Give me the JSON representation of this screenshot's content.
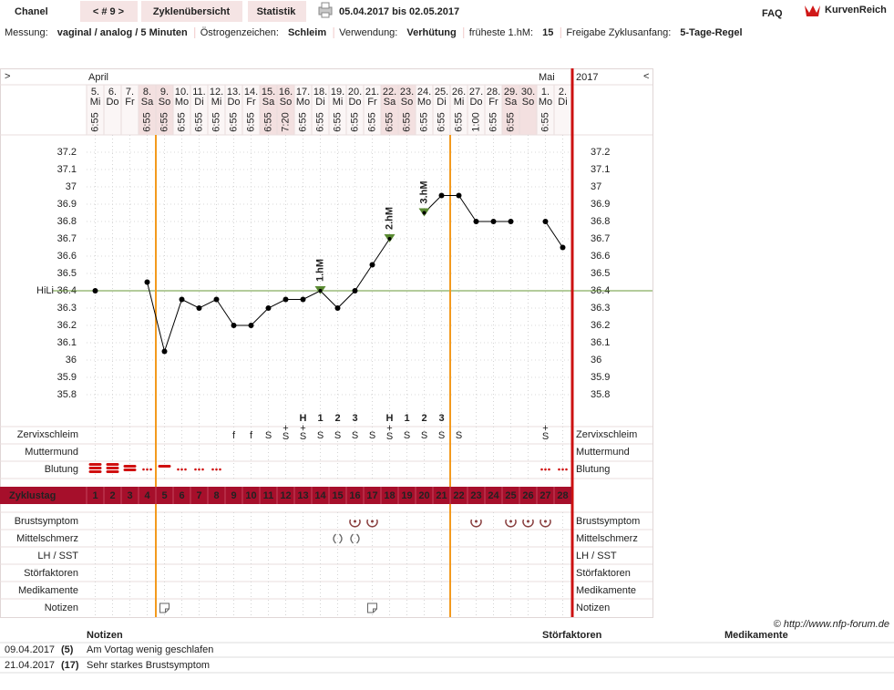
{
  "header": {
    "name": "Chanel",
    "cycle_nav": "< # 9 >",
    "tabs": [
      "Zyklenübersicht",
      "Statistik"
    ],
    "period": "05.04.2017 bis 02.05.2017",
    "faq": "FAQ",
    "logo": "KurvenReich"
  },
  "settings": [
    {
      "label": "Messung:",
      "value": "vaginal / analog / 5 Minuten"
    },
    {
      "label": "Östrogenzeichen:",
      "value": "Schleim"
    },
    {
      "label": "Verwendung:",
      "value": "Verhütung"
    },
    {
      "label": "früheste 1.hM:",
      "value": "15"
    },
    {
      "label": "Freigabe Zyklusanfang:",
      "value": "5-Tage-Regel"
    }
  ],
  "chart_data": {
    "type": "line",
    "nav_left": ">",
    "nav_right": "<",
    "year": "2017",
    "months": [
      "April",
      null,
      null,
      null,
      null,
      null,
      null,
      null,
      null,
      null,
      null,
      null,
      null,
      null,
      null,
      null,
      null,
      null,
      null,
      null,
      null,
      null,
      null,
      null,
      null,
      null,
      "Mai",
      null
    ],
    "dates": [
      "5.",
      "6.",
      "7.",
      "8.",
      "9.",
      "10.",
      "11.",
      "12.",
      "13.",
      "14.",
      "15.",
      "16.",
      "17.",
      "18.",
      "19.",
      "20.",
      "21.",
      "22.",
      "23.",
      "24.",
      "25.",
      "26.",
      "27.",
      "28.",
      "29.",
      "30.",
      "1.",
      "2."
    ],
    "weekdays": [
      "Mi",
      "Do",
      "Fr",
      "Sa",
      "So",
      "Mo",
      "Di",
      "Mi",
      "Do",
      "Fr",
      "Sa",
      "So",
      "Mo",
      "Di",
      "Mi",
      "Do",
      "Fr",
      "Sa",
      "So",
      "Mo",
      "Di",
      "Mi",
      "Do",
      "Fr",
      "Sa",
      "So",
      "Mo",
      "Di"
    ],
    "weekend": [
      false,
      false,
      false,
      true,
      true,
      false,
      false,
      false,
      false,
      false,
      true,
      true,
      false,
      false,
      false,
      false,
      false,
      true,
      true,
      false,
      false,
      false,
      false,
      false,
      true,
      true,
      false,
      false
    ],
    "times": [
      "6:55",
      null,
      null,
      "6:55",
      "6:55",
      "6:55",
      "6:55",
      "6:55",
      "6:55",
      "6:55",
      "6:55",
      "7:20",
      "6:55",
      "6:55",
      "6:55",
      "6:55",
      "6:55",
      "6:55",
      "6:55",
      "6:55",
      "6:55",
      "6:55",
      "1:00",
      "6:55",
      "6:55",
      null,
      "6:55",
      null
    ],
    "values": [
      36.4,
      null,
      null,
      36.45,
      36.05,
      36.35,
      36.3,
      36.35,
      36.2,
      36.2,
      36.3,
      36.35,
      36.35,
      36.4,
      36.3,
      36.4,
      36.55,
      36.7,
      null,
      36.85,
      36.95,
      36.95,
      36.8,
      36.8,
      36.8,
      null,
      36.8,
      36.65
    ],
    "color": "#000000",
    "hm_labels": [
      null,
      null,
      null,
      null,
      null,
      null,
      null,
      null,
      null,
      null,
      null,
      null,
      null,
      "1.hM",
      null,
      null,
      null,
      "2.hM",
      null,
      "3.hM",
      null,
      null,
      null,
      null,
      null,
      null,
      null,
      null
    ],
    "hm_color": "#5a8a32",
    "ylim": [
      35.7,
      37.3
    ],
    "yticks": [
      37.2,
      37.1,
      37,
      36.9,
      36.8,
      36.7,
      36.6,
      36.5,
      36.4,
      36.3,
      36.2,
      36.1,
      36,
      35.9,
      35.8
    ],
    "grid": true,
    "reference_line": {
      "label": "HiLi",
      "value": 36.4,
      "color": "#6a9a3a"
    },
    "phase_lines": [
      4,
      21
    ],
    "phase_color": "#f39a1e",
    "count_row": [
      null,
      null,
      null,
      null,
      null,
      null,
      null,
      null,
      null,
      null,
      null,
      null,
      "H",
      "1",
      "2",
      "3",
      null,
      "H",
      "1",
      "2",
      "3",
      null,
      null,
      null,
      null,
      null,
      null,
      null
    ],
    "rows_upper": [
      {
        "label": "Zervixschleim",
        "color": "#e8820c",
        "values": [
          null,
          null,
          null,
          null,
          null,
          null,
          null,
          null,
          "f",
          "f",
          "S",
          {
            "sign": "S",
            "sup": "+"
          },
          {
            "sign": "S",
            "sup": "+"
          },
          "S",
          "S",
          "S",
          "S",
          {
            "sign": "S",
            "sup": "+"
          },
          "S",
          "S",
          "S",
          "S",
          null,
          null,
          null,
          null,
          {
            "sign": "S",
            "sup": "+"
          },
          null
        ]
      },
      {
        "label": "Muttermund",
        "color": "#5566cc"
      },
      {
        "label": "Blutung",
        "color": "#222222",
        "mark_color": "#d01010",
        "levels": [
          4,
          4,
          3,
          1,
          2,
          1,
          1,
          1,
          null,
          null,
          null,
          null,
          null,
          null,
          null,
          null,
          null,
          null,
          null,
          null,
          null,
          null,
          null,
          null,
          null,
          null,
          1,
          1
        ]
      }
    ],
    "cycle_day": {
      "label": "Zyklustag",
      "days": [
        1,
        2,
        3,
        4,
        5,
        6,
        7,
        8,
        9,
        10,
        11,
        12,
        13,
        14,
        15,
        16,
        17,
        18,
        19,
        20,
        21,
        22,
        23,
        24,
        25,
        26,
        27,
        28
      ],
      "highlight": [
        false,
        false,
        false,
        false,
        true,
        true,
        true,
        true,
        true,
        true,
        true,
        true,
        true,
        true,
        true,
        true,
        true,
        true,
        true,
        true,
        true,
        false,
        false,
        false,
        false,
        false,
        false,
        false
      ],
      "band_color": "#a60f2b",
      "highlight_color": "#f7a030"
    },
    "rows_lower": [
      {
        "label": "Brustsymptom",
        "icon": "breast",
        "marked": [
          false,
          false,
          false,
          false,
          false,
          false,
          false,
          false,
          false,
          false,
          false,
          false,
          false,
          false,
          false,
          true,
          true,
          false,
          false,
          false,
          false,
          false,
          true,
          false,
          true,
          true,
          true,
          false
        ]
      },
      {
        "label": "Mittelschmerz",
        "icon": "pain",
        "marked": [
          false,
          false,
          false,
          false,
          false,
          false,
          false,
          false,
          false,
          false,
          false,
          false,
          false,
          false,
          true,
          true,
          false,
          false,
          false,
          false,
          false,
          false,
          false,
          false,
          false,
          false,
          false,
          false
        ]
      },
      {
        "label": "LH / SST"
      },
      {
        "label": "Störfaktoren"
      },
      {
        "label": "Medikamente"
      },
      {
        "label": "Notizen",
        "icon": "note",
        "marked": [
          false,
          false,
          false,
          false,
          true,
          false,
          false,
          false,
          false,
          false,
          false,
          false,
          false,
          false,
          false,
          false,
          true,
          false,
          false,
          false,
          false,
          false,
          false,
          false,
          false,
          false,
          false,
          false
        ]
      }
    ]
  },
  "footer": {
    "copyright": "© http://www.nfp-forum.de"
  },
  "notes_table": {
    "headers": [
      "Notizen",
      "Störfaktoren",
      "Medikamente"
    ],
    "rows": [
      [
        "09.04.2017",
        "(5)",
        "Am Vortag wenig geschlafen"
      ],
      [
        "21.04.2017",
        "(17)",
        "Sehr starkes Brustsymptom"
      ]
    ]
  }
}
